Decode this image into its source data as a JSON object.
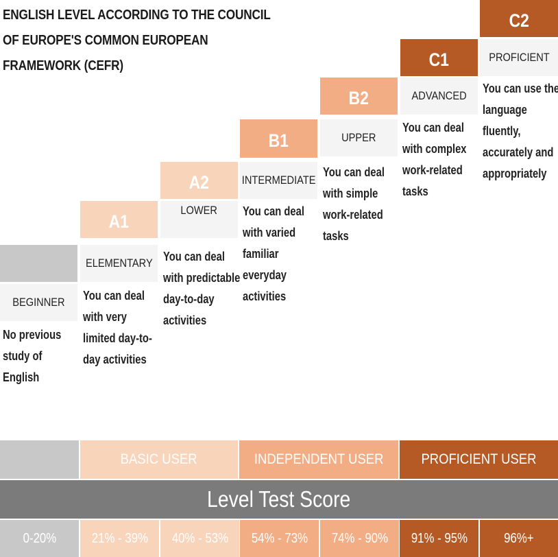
{
  "title": "ENGLISH LEVEL ACCORDING TO THE COUNCIL OF EUROPE'S  COMMON EUROPEAN FRAMEWORK (CEFR)",
  "levels": [
    {
      "code": "",
      "label": "BEGINNER",
      "description": "No previous study of English"
    },
    {
      "code": "A1",
      "label": "ELEMENTARY",
      "description": "You can deal with very limited day-to-day activities"
    },
    {
      "code": "A2",
      "label": "LOWER",
      "description": "You can deal with predictable day-to-day activities"
    },
    {
      "code": "B1",
      "label": "INTERMEDIATE",
      "description": "You can deal with varied familiar everyday activities"
    },
    {
      "code": "B2",
      "label": "UPPER",
      "description": "You can deal with simple work-related tasks"
    },
    {
      "code": "C1",
      "label": "ADVANCED",
      "description": "You can deal with complex work-related tasks"
    },
    {
      "code": "C2",
      "label": "PROFICIENT",
      "description": "You can use the language fluently, accurately and appropriately"
    }
  ],
  "user_bands": {
    "blank": "",
    "basic": "BASIC USER",
    "independent": "INDEPENDENT USER",
    "proficient": "PROFICIENT USER"
  },
  "score_title": "Level Test Score",
  "scores": [
    "0-20%",
    "21% - 39%",
    "40% - 53%",
    "54% - 73%",
    "74% - 90%",
    "91% - 95%",
    "96%+"
  ],
  "colors": {
    "gray": "#c8c8c8",
    "level_a": "#f8d4bb",
    "level_b": "#f2ad85",
    "level_c": "#b55a25",
    "score_bar": "#7b7b7b"
  }
}
